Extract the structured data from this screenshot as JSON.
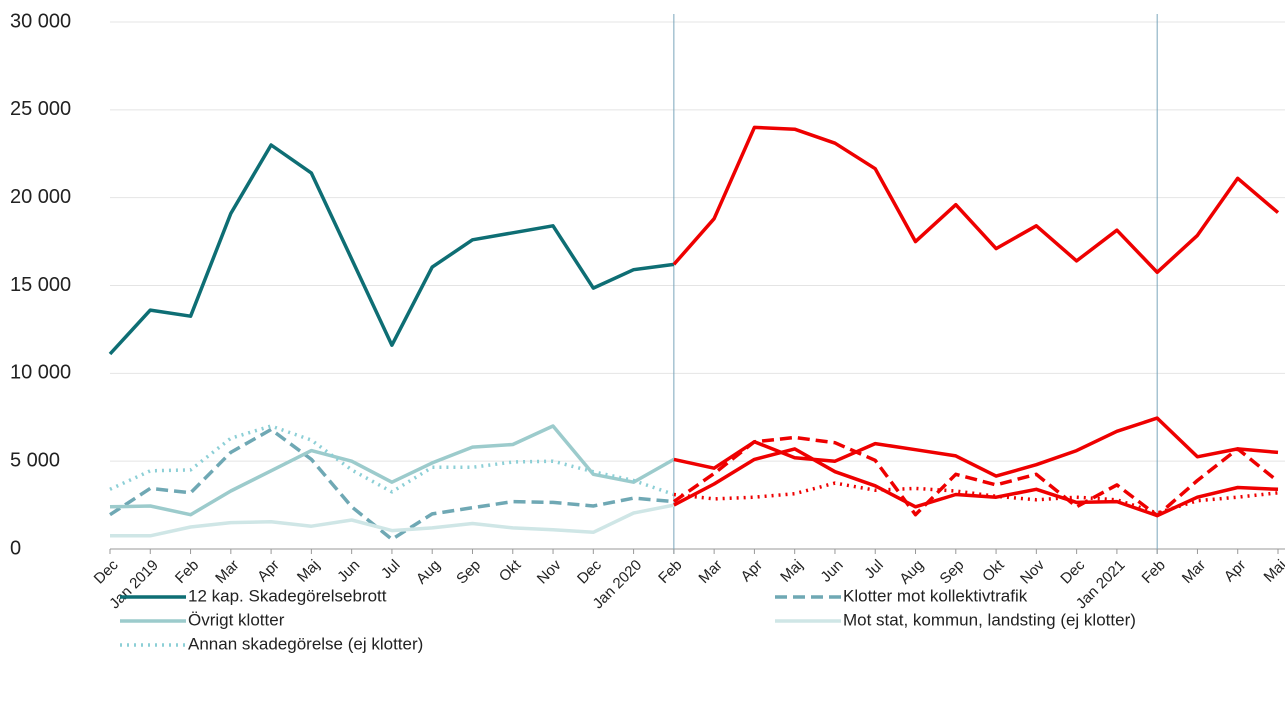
{
  "chart_data": {
    "type": "line",
    "categories": [
      "Dec",
      "Jan 2019",
      "Feb",
      "Mar",
      "Apr",
      "Maj",
      "Jun",
      "Jul",
      "Aug",
      "Sep",
      "Okt",
      "Nov",
      "Dec",
      "Jan 2020",
      "Feb",
      "Mar",
      "Apr",
      "Maj",
      "Jun",
      "Jul",
      "Aug",
      "Sep",
      "Okt",
      "Nov",
      "Dec",
      "Jan 2021",
      "Feb",
      "Mar",
      "Apr",
      "Maj"
    ],
    "ylim": [
      0,
      30000
    ],
    "yticks": [
      0,
      {
        "value": 5000,
        "label": "5 000"
      },
      {
        "value": 10000,
        "label": "10 000"
      },
      {
        "value": 15000,
        "label": "15 000"
      },
      {
        "value": 20000,
        "label": "20 000"
      },
      {
        "value": 25000,
        "label": "25 000"
      },
      {
        "value": 30000,
        "label": "30 000"
      }
    ],
    "grid": true,
    "series": [
      {
        "name": "12 kap. Skadegörelsebrott",
        "color": "#0e6e74",
        "style": "solid",
        "values": [
          11100,
          13600,
          13250,
          19100,
          23000,
          21400,
          16500,
          11600,
          16050,
          17600,
          18000,
          18400,
          14850,
          15900,
          16200,
          null,
          null,
          null,
          null,
          null,
          null,
          null,
          null,
          null,
          null,
          null,
          null,
          null,
          null,
          null
        ]
      },
      {
        "name": "Klotter mot kollektivtrafik",
        "color": "#6fa8b4",
        "style": "dashed",
        "values": [
          1950,
          3450,
          3200,
          5500,
          6800,
          5100,
          2400,
          550,
          2000,
          2350,
          2700,
          2650,
          2450,
          2900,
          2700,
          null,
          null,
          null,
          null,
          null,
          null,
          null,
          null,
          null,
          null,
          null,
          null,
          null,
          null,
          null
        ]
      },
      {
        "name": "Övrigt klotter",
        "color": "#9ccbcc",
        "style": "solid",
        "values": [
          2400,
          2450,
          1950,
          3300,
          4450,
          5600,
          5000,
          3800,
          4900,
          5800,
          5950,
          7000,
          4250,
          3800,
          5100,
          null,
          null,
          null,
          null,
          null,
          null,
          null,
          null,
          null,
          null,
          null,
          null,
          null,
          null,
          null
        ]
      },
      {
        "name": "Mot stat, kommun, landsting (ej klotter)",
        "color": "#cfe6e6",
        "style": "solid",
        "values": [
          750,
          750,
          1250,
          1500,
          1550,
          1300,
          1650,
          1050,
          1200,
          1450,
          1200,
          1100,
          950,
          2050,
          2500,
          null,
          null,
          null,
          null,
          null,
          null,
          null,
          null,
          null,
          null,
          null,
          null,
          null,
          null,
          null
        ]
      },
      {
        "name": "Annan skadegörelse (ej klotter)",
        "color": "#8ccfd6",
        "style": "dotted",
        "values": [
          3400,
          4450,
          4500,
          6300,
          7000,
          6200,
          4500,
          3250,
          4650,
          4650,
          4950,
          5000,
          4400,
          3900,
          3100,
          null,
          null,
          null,
          null,
          null,
          null,
          null,
          null,
          null,
          null,
          null,
          null,
          null,
          null,
          null
        ]
      },
      {
        "color": "#ee0000",
        "style": "solid",
        "values": [
          null,
          null,
          null,
          null,
          null,
          null,
          null,
          null,
          null,
          null,
          null,
          null,
          null,
          null,
          16200,
          18800,
          24000,
          23900,
          23100,
          21650,
          17500,
          19600,
          17100,
          18400,
          16400,
          18150,
          15750,
          17850,
          21100,
          19150
        ]
      },
      {
        "color": "#ee0000",
        "style": "dashed",
        "values": [
          null,
          null,
          null,
          null,
          null,
          null,
          null,
          null,
          null,
          null,
          null,
          null,
          null,
          null,
          2700,
          4300,
          6100,
          6350,
          6050,
          5050,
          1950,
          4250,
          3650,
          4250,
          2400,
          3650,
          1900,
          3900,
          5700,
          3850
        ]
      },
      {
        "color": "#ee0000",
        "style": "solid",
        "values": [
          null,
          null,
          null,
          null,
          null,
          null,
          null,
          null,
          null,
          null,
          null,
          null,
          null,
          null,
          5100,
          4600,
          6100,
          5200,
          5000,
          6000,
          5650,
          5300,
          4150,
          4800,
          5600,
          6700,
          7450,
          5250,
          5700,
          5500
        ]
      },
      {
        "color": "#ee0000",
        "style": "solid",
        "values": [
          null,
          null,
          null,
          null,
          null,
          null,
          null,
          null,
          null,
          null,
          null,
          null,
          null,
          null,
          2500,
          3700,
          5100,
          5700,
          4400,
          3600,
          2400,
          3100,
          2950,
          3400,
          2650,
          2700,
          1900,
          2950,
          3500,
          3400
        ]
      },
      {
        "color": "#ee0000",
        "style": "dotted",
        "values": [
          null,
          null,
          null,
          null,
          null,
          null,
          null,
          null,
          null,
          null,
          null,
          null,
          null,
          null,
          3100,
          2850,
          2950,
          3150,
          3750,
          3350,
          3450,
          3300,
          3000,
          2800,
          2950,
          2800,
          2050,
          2750,
          2950,
          3200
        ]
      }
    ]
  }
}
